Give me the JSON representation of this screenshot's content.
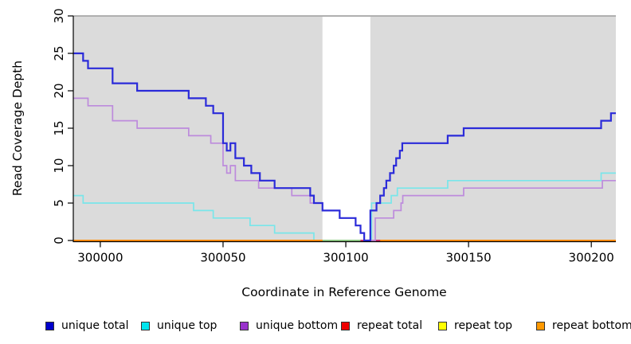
{
  "chart_data": {
    "type": "line",
    "subtype": "step",
    "title": "",
    "xlabel": "Coordinate in Reference Genome",
    "ylabel": "Read Coverage Depth",
    "xlim": [
      299989,
      300210
    ],
    "ylim": [
      0,
      30
    ],
    "x_ticks": [
      300000,
      300050,
      300100,
      300150,
      300200
    ],
    "y_ticks": [
      0,
      5,
      10,
      15,
      20,
      25,
      30
    ],
    "grid": false,
    "legend_position": "bottom",
    "page_background_color": "#FFFFFF",
    "plot_background_color": "#DBDBDB",
    "plot_top_border_color": "#9C9C9C",
    "axis_color": "#000000",
    "highlight_band": {
      "x_start": 300090.5,
      "x_end": 300110,
      "color": "#FFFFFF",
      "note": "white unshaded vertical region over gray plot background"
    },
    "series": [
      {
        "name": "unique total",
        "slug": "unique-total",
        "legend_fill": "#0000CC",
        "line_color": "#2B2BD9",
        "line_width": 2.2,
        "points": [
          [
            299989,
            25
          ],
          [
            299993,
            24
          ],
          [
            299995,
            23
          ],
          [
            300005,
            21
          ],
          [
            300015,
            20
          ],
          [
            300036,
            19
          ],
          [
            300043,
            18
          ],
          [
            300046,
            17
          ],
          [
            300050,
            13
          ],
          [
            300051.5,
            12
          ],
          [
            300053,
            13
          ],
          [
            300055,
            11
          ],
          [
            300058.5,
            10
          ],
          [
            300061.5,
            9
          ],
          [
            300065,
            8
          ],
          [
            300071,
            7
          ],
          [
            300085.5,
            6
          ],
          [
            300087,
            5
          ],
          [
            300090.5,
            4
          ],
          [
            300097.5,
            3
          ],
          [
            300104,
            2
          ],
          [
            300106,
            1
          ],
          [
            300107.5,
            0
          ],
          [
            300110,
            4
          ],
          [
            300112.5,
            5
          ],
          [
            300114,
            6
          ],
          [
            300115.5,
            7
          ],
          [
            300116.5,
            8
          ],
          [
            300118,
            9
          ],
          [
            300119.5,
            10
          ],
          [
            300120.5,
            11
          ],
          [
            300122,
            12
          ],
          [
            300123,
            13
          ],
          [
            300141.5,
            14
          ],
          [
            300148,
            15
          ],
          [
            300204,
            16
          ],
          [
            300208,
            17
          ]
        ]
      },
      {
        "name": "unique top",
        "slug": "unique-top",
        "legend_fill": "#00E5EE",
        "line_color": "#79E6EA",
        "line_width": 1.7,
        "points": [
          [
            299989,
            6
          ],
          [
            299993,
            5
          ],
          [
            300038,
            4
          ],
          [
            300046,
            3
          ],
          [
            300061,
            2
          ],
          [
            300071,
            1
          ],
          [
            300087,
            0
          ],
          [
            300110.5,
            5
          ],
          [
            300118.5,
            6
          ],
          [
            300121,
            7
          ],
          [
            300141.5,
            8
          ],
          [
            300204,
            9
          ]
        ]
      },
      {
        "name": "unique bottom",
        "slug": "unique-bottom",
        "legend_fill": "#9932CC",
        "line_color": "#BD8BDC",
        "line_width": 1.7,
        "points": [
          [
            299989,
            19
          ],
          [
            299995,
            18
          ],
          [
            300005,
            16
          ],
          [
            300015,
            15
          ],
          [
            300036,
            14
          ],
          [
            300045,
            13
          ],
          [
            300050,
            10
          ],
          [
            300051.5,
            9
          ],
          [
            300053,
            10
          ],
          [
            300055,
            8
          ],
          [
            300064.5,
            7
          ],
          [
            300078,
            6
          ],
          [
            300085.5,
            5
          ],
          [
            300090.5,
            4
          ],
          [
            300097.5,
            3
          ],
          [
            300104,
            2
          ],
          [
            300106,
            1
          ],
          [
            300107.5,
            0
          ],
          [
            300112,
            3
          ],
          [
            300119.5,
            4
          ],
          [
            300122.5,
            5
          ],
          [
            300123.2,
            6
          ],
          [
            300148,
            7
          ],
          [
            300204.5,
            8
          ]
        ]
      },
      {
        "name": "repeat total",
        "slug": "repeat-total",
        "legend_fill": "#EE0000",
        "line_color": "#EE0000",
        "line_width": 1.7,
        "points": [
          [
            299989,
            0
          ]
        ],
        "note": "constant 0 across plotted range"
      },
      {
        "name": "repeat top",
        "slug": "repeat-top",
        "legend_fill": "#FFFF00",
        "line_color": "#FFFF00",
        "line_width": 1.7,
        "points": [
          [
            299989,
            0
          ]
        ],
        "note": "constant 0 across plotted range"
      },
      {
        "name": "repeat bottom",
        "slug": "repeat-bottom",
        "legend_fill": "#FF9900",
        "line_color": "#FF8C00",
        "line_width": 2,
        "points": [
          [
            299989,
            0
          ]
        ],
        "note": "constant 0 across plotted range; visible orange baseline"
      }
    ],
    "baseline_overlap_segments": [
      {
        "name": "light-green-baseline-segment",
        "color": "#8FCB85",
        "x_start": 300090.5,
        "x_end": 300106,
        "y": 0
      },
      {
        "name": "crimson-baseline-segment",
        "color": "#CD2E66",
        "x_start": 300106,
        "x_end": 300114,
        "y": 0
      }
    ]
  }
}
